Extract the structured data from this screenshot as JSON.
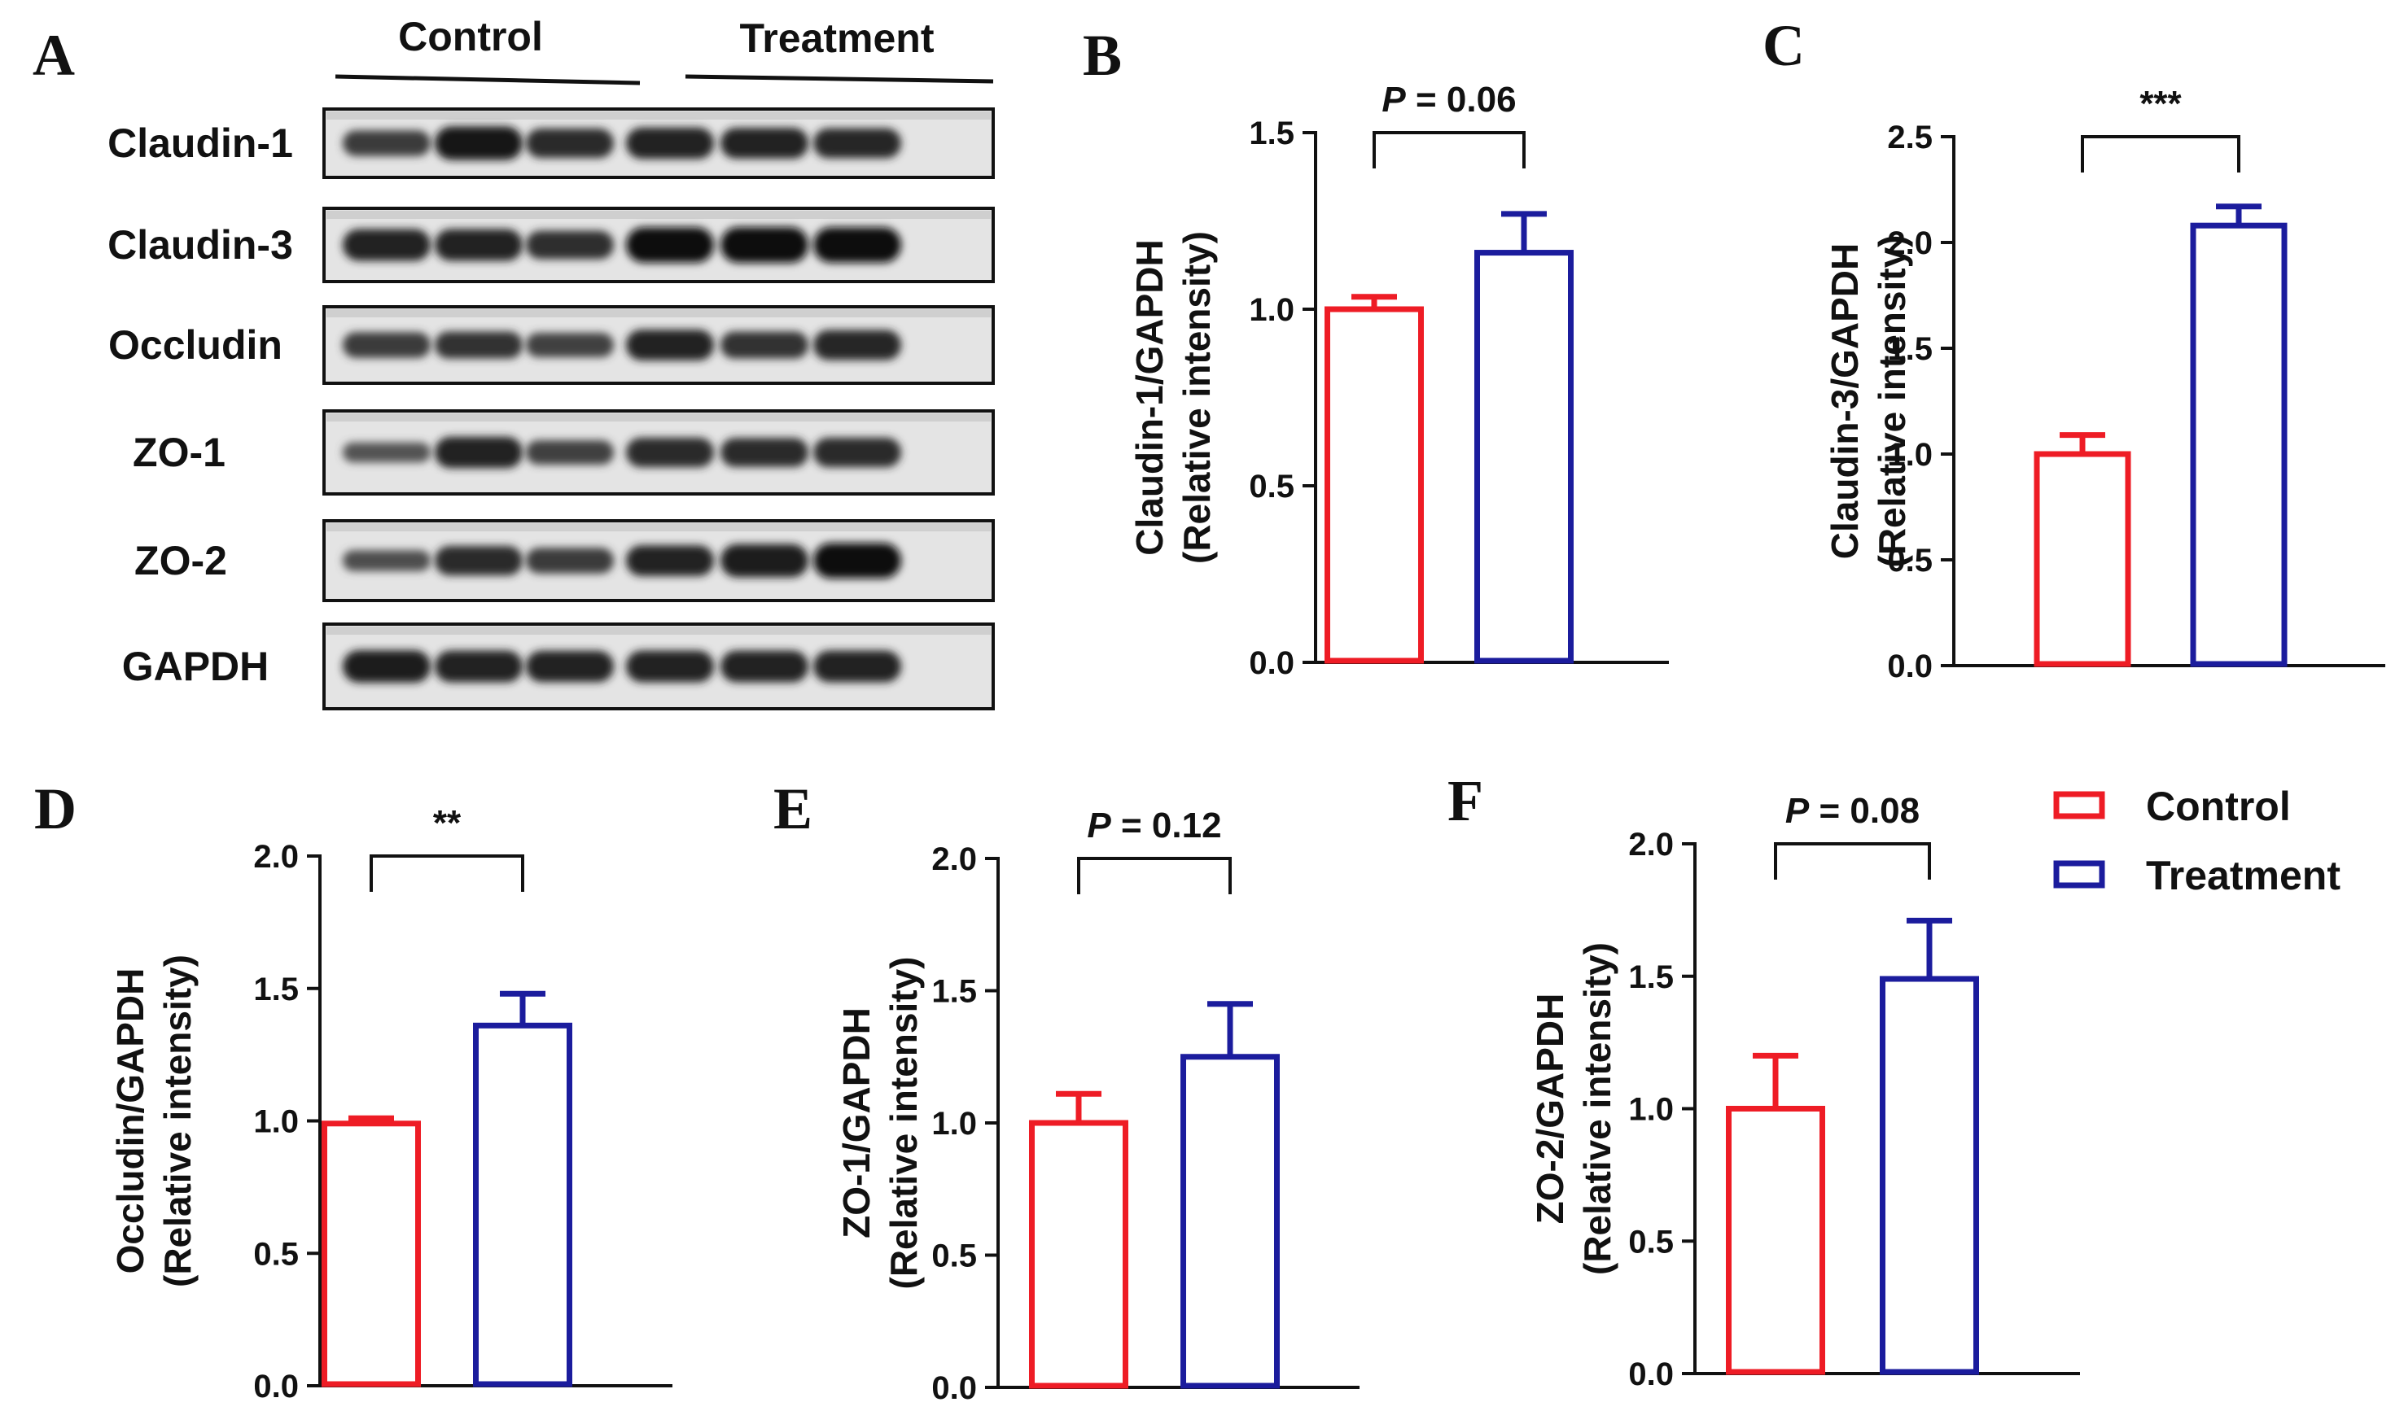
{
  "colors": {
    "control": "#ee1c25",
    "treatment": "#1b1c9d",
    "axis": "#111111"
  },
  "blot": {
    "panel_letter": "A",
    "group_headers": [
      "Control",
      "Treatment"
    ],
    "rows": [
      {
        "label": "Claudin-1",
        "intensities": [
          0.55,
          0.9,
          0.72,
          0.8,
          0.78,
          0.74
        ]
      },
      {
        "label": "Claudin-3",
        "intensities": [
          0.82,
          0.82,
          0.68,
          0.98,
          1.0,
          0.98
        ]
      },
      {
        "label": "Occludin",
        "intensities": [
          0.55,
          0.62,
          0.5,
          0.78,
          0.62,
          0.75
        ]
      },
      {
        "label": "ZO-1",
        "intensities": [
          0.3,
          0.8,
          0.5,
          0.72,
          0.7,
          0.72
        ]
      },
      {
        "label": "ZO-2",
        "intensities": [
          0.35,
          0.72,
          0.55,
          0.78,
          0.88,
          0.98
        ]
      },
      {
        "label": "GAPDH",
        "intensities": [
          0.85,
          0.82,
          0.8,
          0.82,
          0.82,
          0.82
        ]
      }
    ]
  },
  "legend": {
    "items": [
      "Control",
      "Treatment"
    ]
  },
  "chart_data": [
    {
      "panel": "B",
      "type": "bar",
      "categories": [
        "Control",
        "Treatment"
      ],
      "values": [
        1.0,
        1.16
      ],
      "errors": [
        0.035,
        0.11
      ],
      "ylabel_line1": "Claudin-1/GAPDH",
      "ylabel_line2": "(Relative intensity)",
      "ylim": [
        0,
        1.5
      ],
      "ticks": [
        "0.0",
        "0.5",
        "1.0",
        "1.5"
      ],
      "significance": {
        "prefix": "P",
        "suffix": " = 0.06"
      }
    },
    {
      "panel": "C",
      "type": "bar",
      "categories": [
        "Control",
        "Treatment"
      ],
      "values": [
        1.0,
        2.08
      ],
      "errors": [
        0.09,
        0.09
      ],
      "ylabel_line1": "Claudin-3/GAPDH",
      "ylabel_line2": "(Relative intensity)",
      "ylim": [
        0,
        2.5
      ],
      "ticks": [
        "0.0",
        "0.5",
        "1.0",
        "1.5",
        "2.0",
        "2.5"
      ],
      "significance": {
        "prefix": "",
        "suffix": "***"
      }
    },
    {
      "panel": "D",
      "type": "bar",
      "categories": [
        "Control",
        "Treatment"
      ],
      "values": [
        0.99,
        1.36
      ],
      "errors": [
        0.02,
        0.12
      ],
      "ylabel_line1": "Occludin/GAPDH",
      "ylabel_line2": "(Relative intensity)",
      "ylim": [
        0,
        2.0
      ],
      "ticks": [
        "0.0",
        "0.5",
        "1.0",
        "1.5",
        "2.0"
      ],
      "significance": {
        "prefix": "",
        "suffix": "**"
      }
    },
    {
      "panel": "E",
      "type": "bar",
      "categories": [
        "Control",
        "Treatment"
      ],
      "values": [
        1.0,
        1.25
      ],
      "errors": [
        0.11,
        0.2
      ],
      "ylabel_line1": "ZO-1/GAPDH",
      "ylabel_line2": "(Relative intensity)",
      "ylim": [
        0,
        2.0
      ],
      "ticks": [
        "0.0",
        "0.5",
        "1.0",
        "1.5",
        "2.0"
      ],
      "significance": {
        "prefix": "P",
        "suffix": " = 0.12"
      }
    },
    {
      "panel": "F",
      "type": "bar",
      "categories": [
        "Control",
        "Treatment"
      ],
      "values": [
        1.0,
        1.49
      ],
      "errors": [
        0.2,
        0.22
      ],
      "ylabel_line1": "ZO-2/GAPDH",
      "ylabel_line2": "(Relative intensity)",
      "ylim": [
        0,
        2.0
      ],
      "ticks": [
        "0.0",
        "0.5",
        "1.0",
        "1.5",
        "2.0"
      ],
      "significance": {
        "prefix": "P",
        "suffix": " = 0.08"
      }
    }
  ]
}
